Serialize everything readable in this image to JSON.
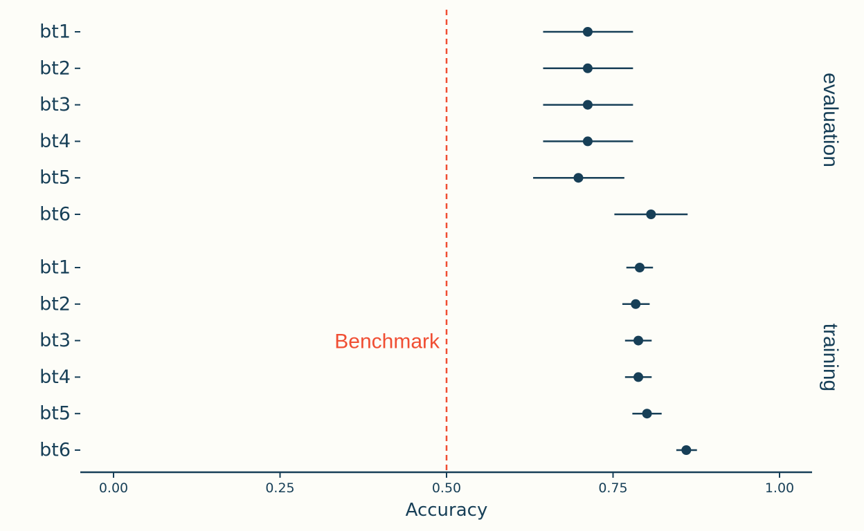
{
  "chart_data": {
    "type": "scatter",
    "subtype": "pointrange",
    "xlabel": "Accuracy",
    "xlim": [
      -0.05,
      1.05
    ],
    "x_ticks": [
      "0.00",
      "0.25",
      "0.50",
      "0.75",
      "1.00"
    ],
    "x_tick_values": [
      0,
      0.25,
      0.5,
      0.75,
      1.0
    ],
    "grid": false,
    "colors": {
      "point": "#173f57",
      "benchmark": "#f04e33",
      "background": "#fdfdf8"
    },
    "reference_line": {
      "x": 0.5,
      "label": "Benchmark",
      "style": "dashed"
    },
    "facets": [
      {
        "label": "evaluation",
        "rows": [
          {
            "label": "bt1",
            "x": 0.712,
            "low": 0.645,
            "high": 0.78
          },
          {
            "label": "bt2",
            "x": 0.712,
            "low": 0.645,
            "high": 0.78
          },
          {
            "label": "bt3",
            "x": 0.712,
            "low": 0.645,
            "high": 0.78
          },
          {
            "label": "bt4",
            "x": 0.712,
            "low": 0.645,
            "high": 0.78
          },
          {
            "label": "bt5",
            "x": 0.698,
            "low": 0.63,
            "high": 0.767
          },
          {
            "label": "bt6",
            "x": 0.807,
            "low": 0.752,
            "high": 0.862
          }
        ]
      },
      {
        "label": "training",
        "rows": [
          {
            "label": "bt1",
            "x": 0.79,
            "low": 0.77,
            "high": 0.81
          },
          {
            "label": "bt2",
            "x": 0.784,
            "low": 0.764,
            "high": 0.805
          },
          {
            "label": "bt3",
            "x": 0.788,
            "low": 0.768,
            "high": 0.808
          },
          {
            "label": "bt4",
            "x": 0.788,
            "low": 0.768,
            "high": 0.808
          },
          {
            "label": "bt5",
            "x": 0.801,
            "low": 0.779,
            "high": 0.823
          },
          {
            "label": "bt6",
            "x": 0.86,
            "low": 0.845,
            "high": 0.876
          }
        ]
      }
    ]
  }
}
